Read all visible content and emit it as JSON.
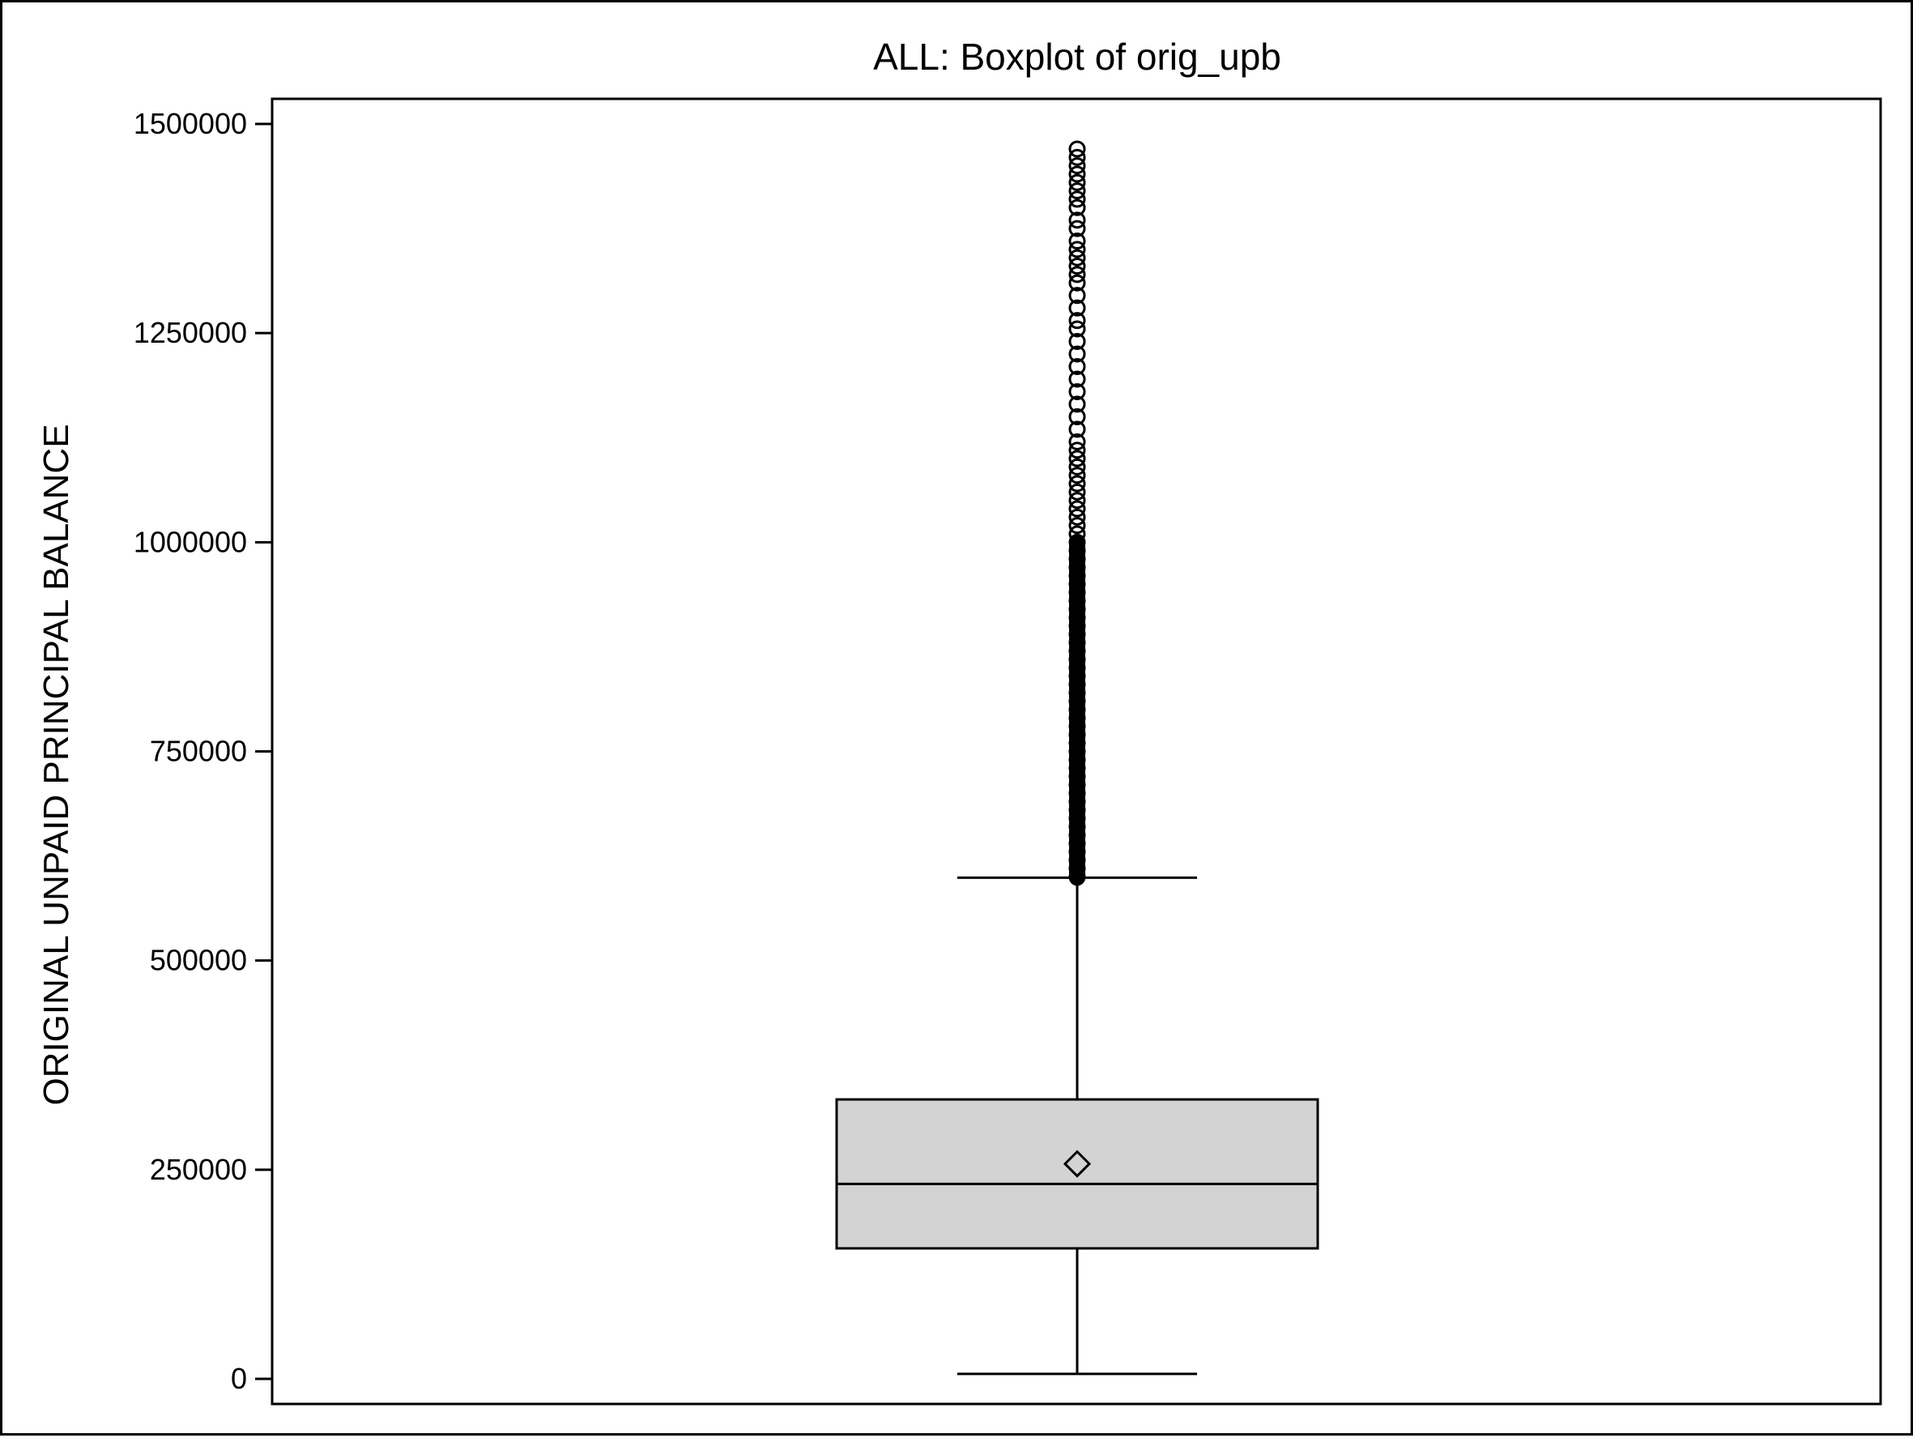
{
  "chart_data": {
    "type": "box",
    "title": "ALL: Boxplot of orig_upb",
    "xlabel": "",
    "ylabel": "ORIGINAL UNPAID PRINCIPAL BALANCE",
    "ylim": [
      -30000,
      1530000
    ],
    "yticks": [
      0,
      250000,
      500000,
      750000,
      1000000,
      1250000,
      1500000
    ],
    "ytick_labels": [
      "0",
      "250000",
      "500000",
      "750000",
      "1000000",
      "1250000",
      "1500000"
    ],
    "grid": false,
    "series": [
      {
        "min": 6000,
        "q1": 156000,
        "median": 233000,
        "q3": 334000,
        "whisker_high": 599000,
        "mean": 257000,
        "outliers": [
          600000,
          610000,
          620000,
          630000,
          640000,
          650000,
          660000,
          670000,
          680000,
          690000,
          700000,
          710000,
          720000,
          730000,
          740000,
          750000,
          760000,
          770000,
          780000,
          790000,
          800000,
          810000,
          820000,
          830000,
          840000,
          850000,
          860000,
          870000,
          880000,
          890000,
          900000,
          910000,
          920000,
          930000,
          940000,
          950000,
          960000,
          970000,
          980000,
          990000,
          1000000,
          1010000,
          1020000,
          1030000,
          1040000,
          1050000,
          1060000,
          1070000,
          1080000,
          1090000,
          1100000,
          1110000,
          1120000,
          1135000,
          1150000,
          1165000,
          1180000,
          1195000,
          1210000,
          1225000,
          1240000,
          1255000,
          1265000,
          1280000,
          1295000,
          1310000,
          1320000,
          1330000,
          1340000,
          1350000,
          1360000,
          1375000,
          1385000,
          1400000,
          1410000,
          1420000,
          1430000,
          1440000,
          1450000,
          1460000,
          1470000
        ]
      }
    ],
    "colors": {
      "box_fill": "#d3d3d3",
      "stroke": "#000000",
      "background": "#ffffff"
    },
    "markers": {
      "mean": "diamond",
      "outlier": "circle"
    }
  }
}
